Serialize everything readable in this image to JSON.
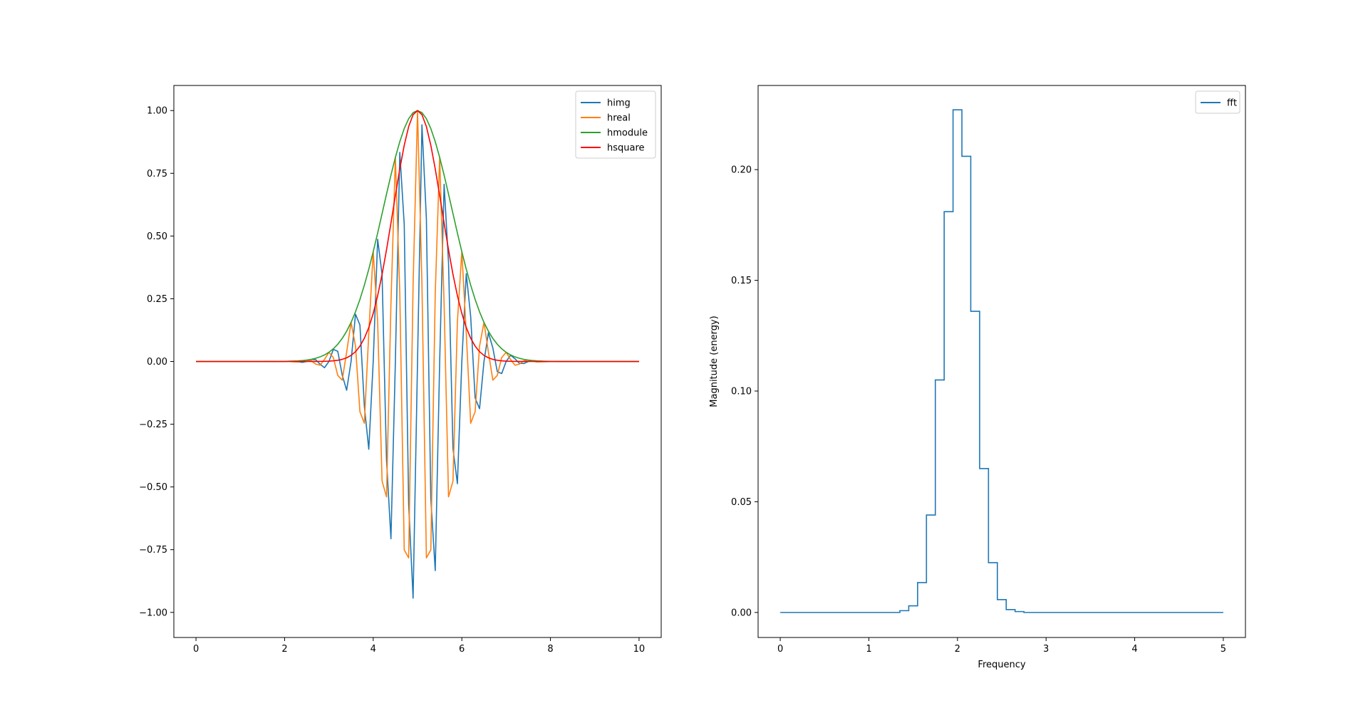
{
  "chart_data": [
    {
      "type": "line",
      "title": "",
      "xlabel": "",
      "ylabel": "",
      "xlim": [
        -0.5,
        10.5
      ],
      "ylim": [
        -1.1,
        1.1
      ],
      "xticks": [
        0,
        2,
        4,
        6,
        8,
        10
      ],
      "xtick_labels": [
        "0",
        "2",
        "4",
        "6",
        "8",
        "10"
      ],
      "yticks": [
        -1.0,
        -0.75,
        -0.5,
        -0.25,
        0.0,
        0.25,
        0.5,
        0.75,
        1.0
      ],
      "ytick_labels": [
        "−1.00",
        "−0.75",
        "−0.50",
        "−0.25",
        "0.00",
        "0.25",
        "0.50",
        "0.75",
        "1.00"
      ],
      "grid": false,
      "legend_position": "top-right",
      "wavelet": {
        "center": 5,
        "sigma": 1.1,
        "frequency": 2,
        "x_start": 0,
        "x_end": 10,
        "step": 0.1
      },
      "series": [
        {
          "name": "himg",
          "color": "#1f77b4",
          "component": "imag"
        },
        {
          "name": "hreal",
          "color": "#ff7f0e",
          "component": "real"
        },
        {
          "name": "hmodule",
          "color": "#2ca02c",
          "component": "module"
        },
        {
          "name": "hsquare",
          "color": "#ff0000",
          "component": "square"
        }
      ]
    },
    {
      "type": "line",
      "title": "",
      "xlabel": "Frequency",
      "ylabel": "Magnitude (energy)",
      "xlim": [
        -0.25,
        5.25
      ],
      "ylim": [
        -0.0113,
        0.238
      ],
      "xticks": [
        0,
        1,
        2,
        3,
        4,
        5
      ],
      "xtick_labels": [
        "0",
        "1",
        "2",
        "3",
        "4",
        "5"
      ],
      "yticks": [
        0.0,
        0.05,
        0.1,
        0.15,
        0.2
      ],
      "ytick_labels": [
        "0.00",
        "0.05",
        "0.10",
        "0.15",
        "0.20"
      ],
      "grid": false,
      "legend_position": "top-right",
      "step_where": "post",
      "series": [
        {
          "name": "fft",
          "color": "#1f77b4",
          "x": [
            0,
            1.35,
            1.45,
            1.55,
            1.65,
            1.75,
            1.85,
            1.95,
            2.05,
            2.15,
            2.25,
            2.35,
            2.45,
            2.55,
            2.65,
            2.75,
            5
          ],
          "values": [
            0.0,
            0.0008,
            0.003,
            0.0135,
            0.044,
            0.105,
            0.181,
            0.227,
            0.206,
            0.136,
            0.065,
            0.0225,
            0.0058,
            0.0013,
            0.0004,
            0.0,
            0.0
          ]
        }
      ]
    }
  ]
}
